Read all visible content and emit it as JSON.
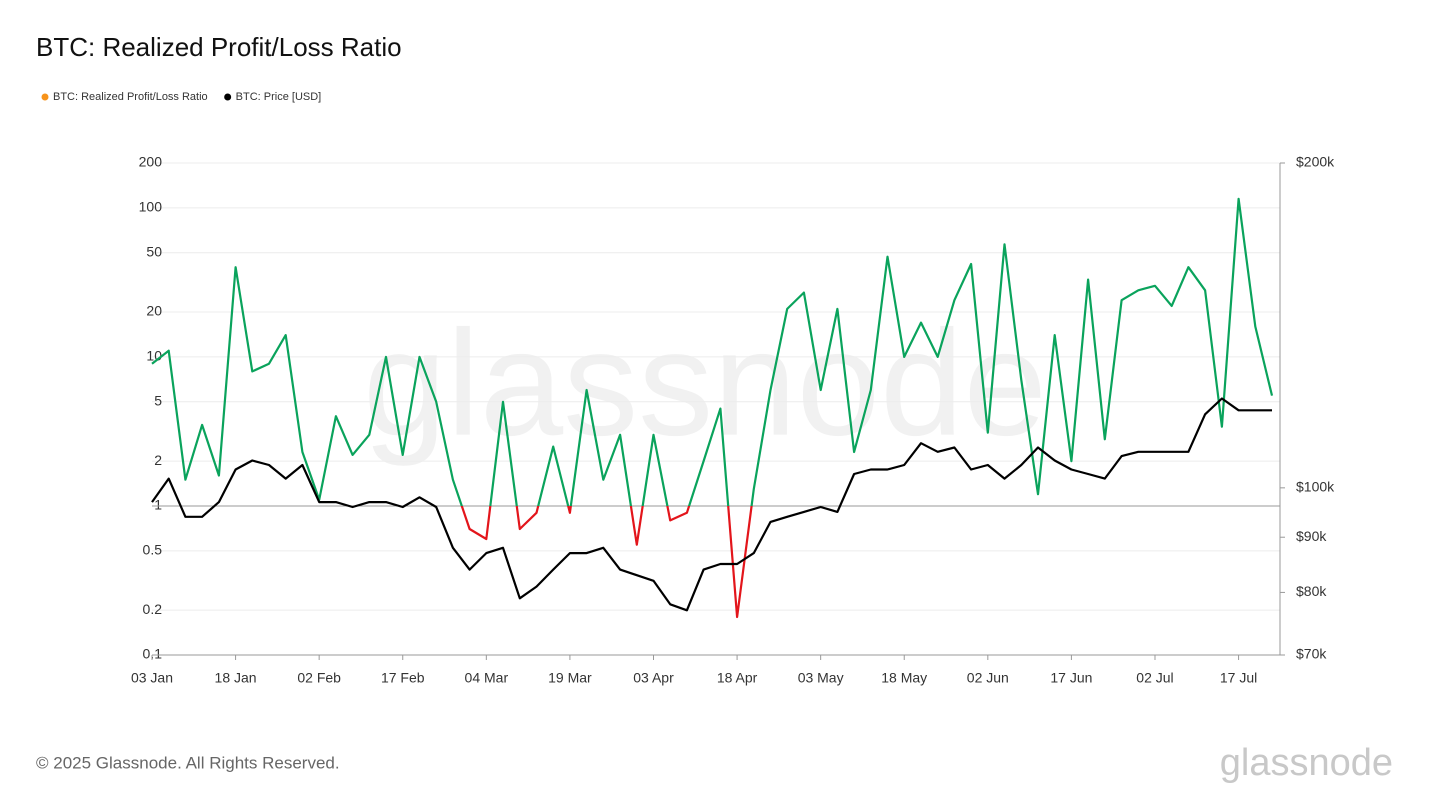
{
  "chart_data": {
    "type": "line",
    "title": "BTC: Realized Profit/Loss Ratio",
    "footer": "© 2025 Glassnode. All Rights Reserved.",
    "watermark": "glassnode",
    "x": [
      "03 Jan",
      "06 Jan",
      "09 Jan",
      "12 Jan",
      "15 Jan",
      "18 Jan",
      "21 Jan",
      "24 Jan",
      "27 Jan",
      "30 Jan",
      "02 Feb",
      "05 Feb",
      "08 Feb",
      "11 Feb",
      "14 Feb",
      "17 Feb",
      "20 Feb",
      "23 Feb",
      "26 Feb",
      "01 Mar",
      "04 Mar",
      "07 Mar",
      "10 Mar",
      "13 Mar",
      "16 Mar",
      "19 Mar",
      "22 Mar",
      "25 Mar",
      "28 Mar",
      "31 Mar",
      "03 Apr",
      "06 Apr",
      "09 Apr",
      "12 Apr",
      "15 Apr",
      "18 Apr",
      "21 Apr",
      "24 Apr",
      "27 Apr",
      "30 Apr",
      "03 May",
      "06 May",
      "09 May",
      "12 May",
      "15 May",
      "18 May",
      "21 May",
      "24 May",
      "27 May",
      "30 May",
      "02 Jun",
      "05 Jun",
      "08 Jun",
      "11 Jun",
      "14 Jun",
      "17 Jun",
      "20 Jun",
      "23 Jun",
      "26 Jun",
      "29 Jun",
      "02 Jul",
      "05 Jul",
      "08 Jul",
      "11 Jul",
      "14 Jul",
      "17 Jul",
      "20 Jul",
      "23 Jul"
    ],
    "xticks": [
      "03 Jan",
      "18 Jan",
      "02 Feb",
      "17 Feb",
      "04 Mar",
      "19 Mar",
      "03 Apr",
      "18 Apr",
      "03 May",
      "18 May",
      "02 Jun",
      "17 Jun",
      "02 Jul",
      "17 Jul"
    ],
    "series": [
      {
        "name": "BTC: Realized Profit/Loss Ratio",
        "color": "#f7931a",
        "color_above": "#0aa35c",
        "color_below": "#e3151b",
        "values": [
          9,
          11,
          1.5,
          3.5,
          1.6,
          40,
          8,
          9,
          14,
          2.3,
          1.1,
          4,
          2.2,
          3,
          10,
          2.2,
          10,
          5,
          1.5,
          0.7,
          0.6,
          5,
          0.7,
          0.9,
          2.5,
          0.9,
          6,
          1.5,
          3,
          0.55,
          3,
          0.8,
          0.9,
          2,
          4.5,
          0.18,
          1.3,
          6,
          21,
          27,
          6,
          21,
          2.3,
          6,
          47,
          10,
          17,
          10,
          24,
          42,
          3.1,
          57,
          7,
          1.2,
          14,
          2,
          33,
          2.8,
          24,
          28,
          30,
          22,
          40,
          28,
          3.4,
          115,
          16,
          5.5
        ]
      },
      {
        "name": "BTC: Price [USD]",
        "color": "#000000",
        "axis": "y2",
        "values": [
          97000,
          102000,
          94000,
          94000,
          97000,
          104000,
          106000,
          105000,
          102000,
          105000,
          97000,
          97000,
          96000,
          97000,
          97000,
          96000,
          98000,
          96000,
          88000,
          84000,
          87000,
          88000,
          79000,
          81000,
          84000,
          87000,
          87000,
          88000,
          84000,
          83000,
          82000,
          78000,
          77000,
          84000,
          85000,
          85000,
          87000,
          93000,
          94000,
          95000,
          96000,
          95000,
          103000,
          104000,
          104000,
          105000,
          110000,
          108000,
          109000,
          104000,
          105000,
          102000,
          105000,
          109000,
          106000,
          104000,
          103000,
          102000,
          107000,
          108000,
          108000,
          108000,
          108000,
          117000,
          121000,
          118000,
          118000,
          118000
        ]
      }
    ],
    "ylim": [
      0.1,
      200
    ],
    "yscale": "log",
    "yticks": [
      200,
      100,
      50,
      20,
      10,
      5,
      2,
      1,
      0.5,
      0.2,
      0.1
    ],
    "y2lim": [
      70000,
      200000
    ],
    "y2scale": "log",
    "y2ticks": [
      {
        "value": 200000,
        "label": "$200k"
      },
      {
        "value": 100000,
        "label": "$100k"
      },
      {
        "value": 90000,
        "label": "$90k"
      },
      {
        "value": 80000,
        "label": "$80k"
      },
      {
        "value": 70000,
        "label": "$70k"
      }
    ],
    "reference_line": 1,
    "grid": true
  }
}
